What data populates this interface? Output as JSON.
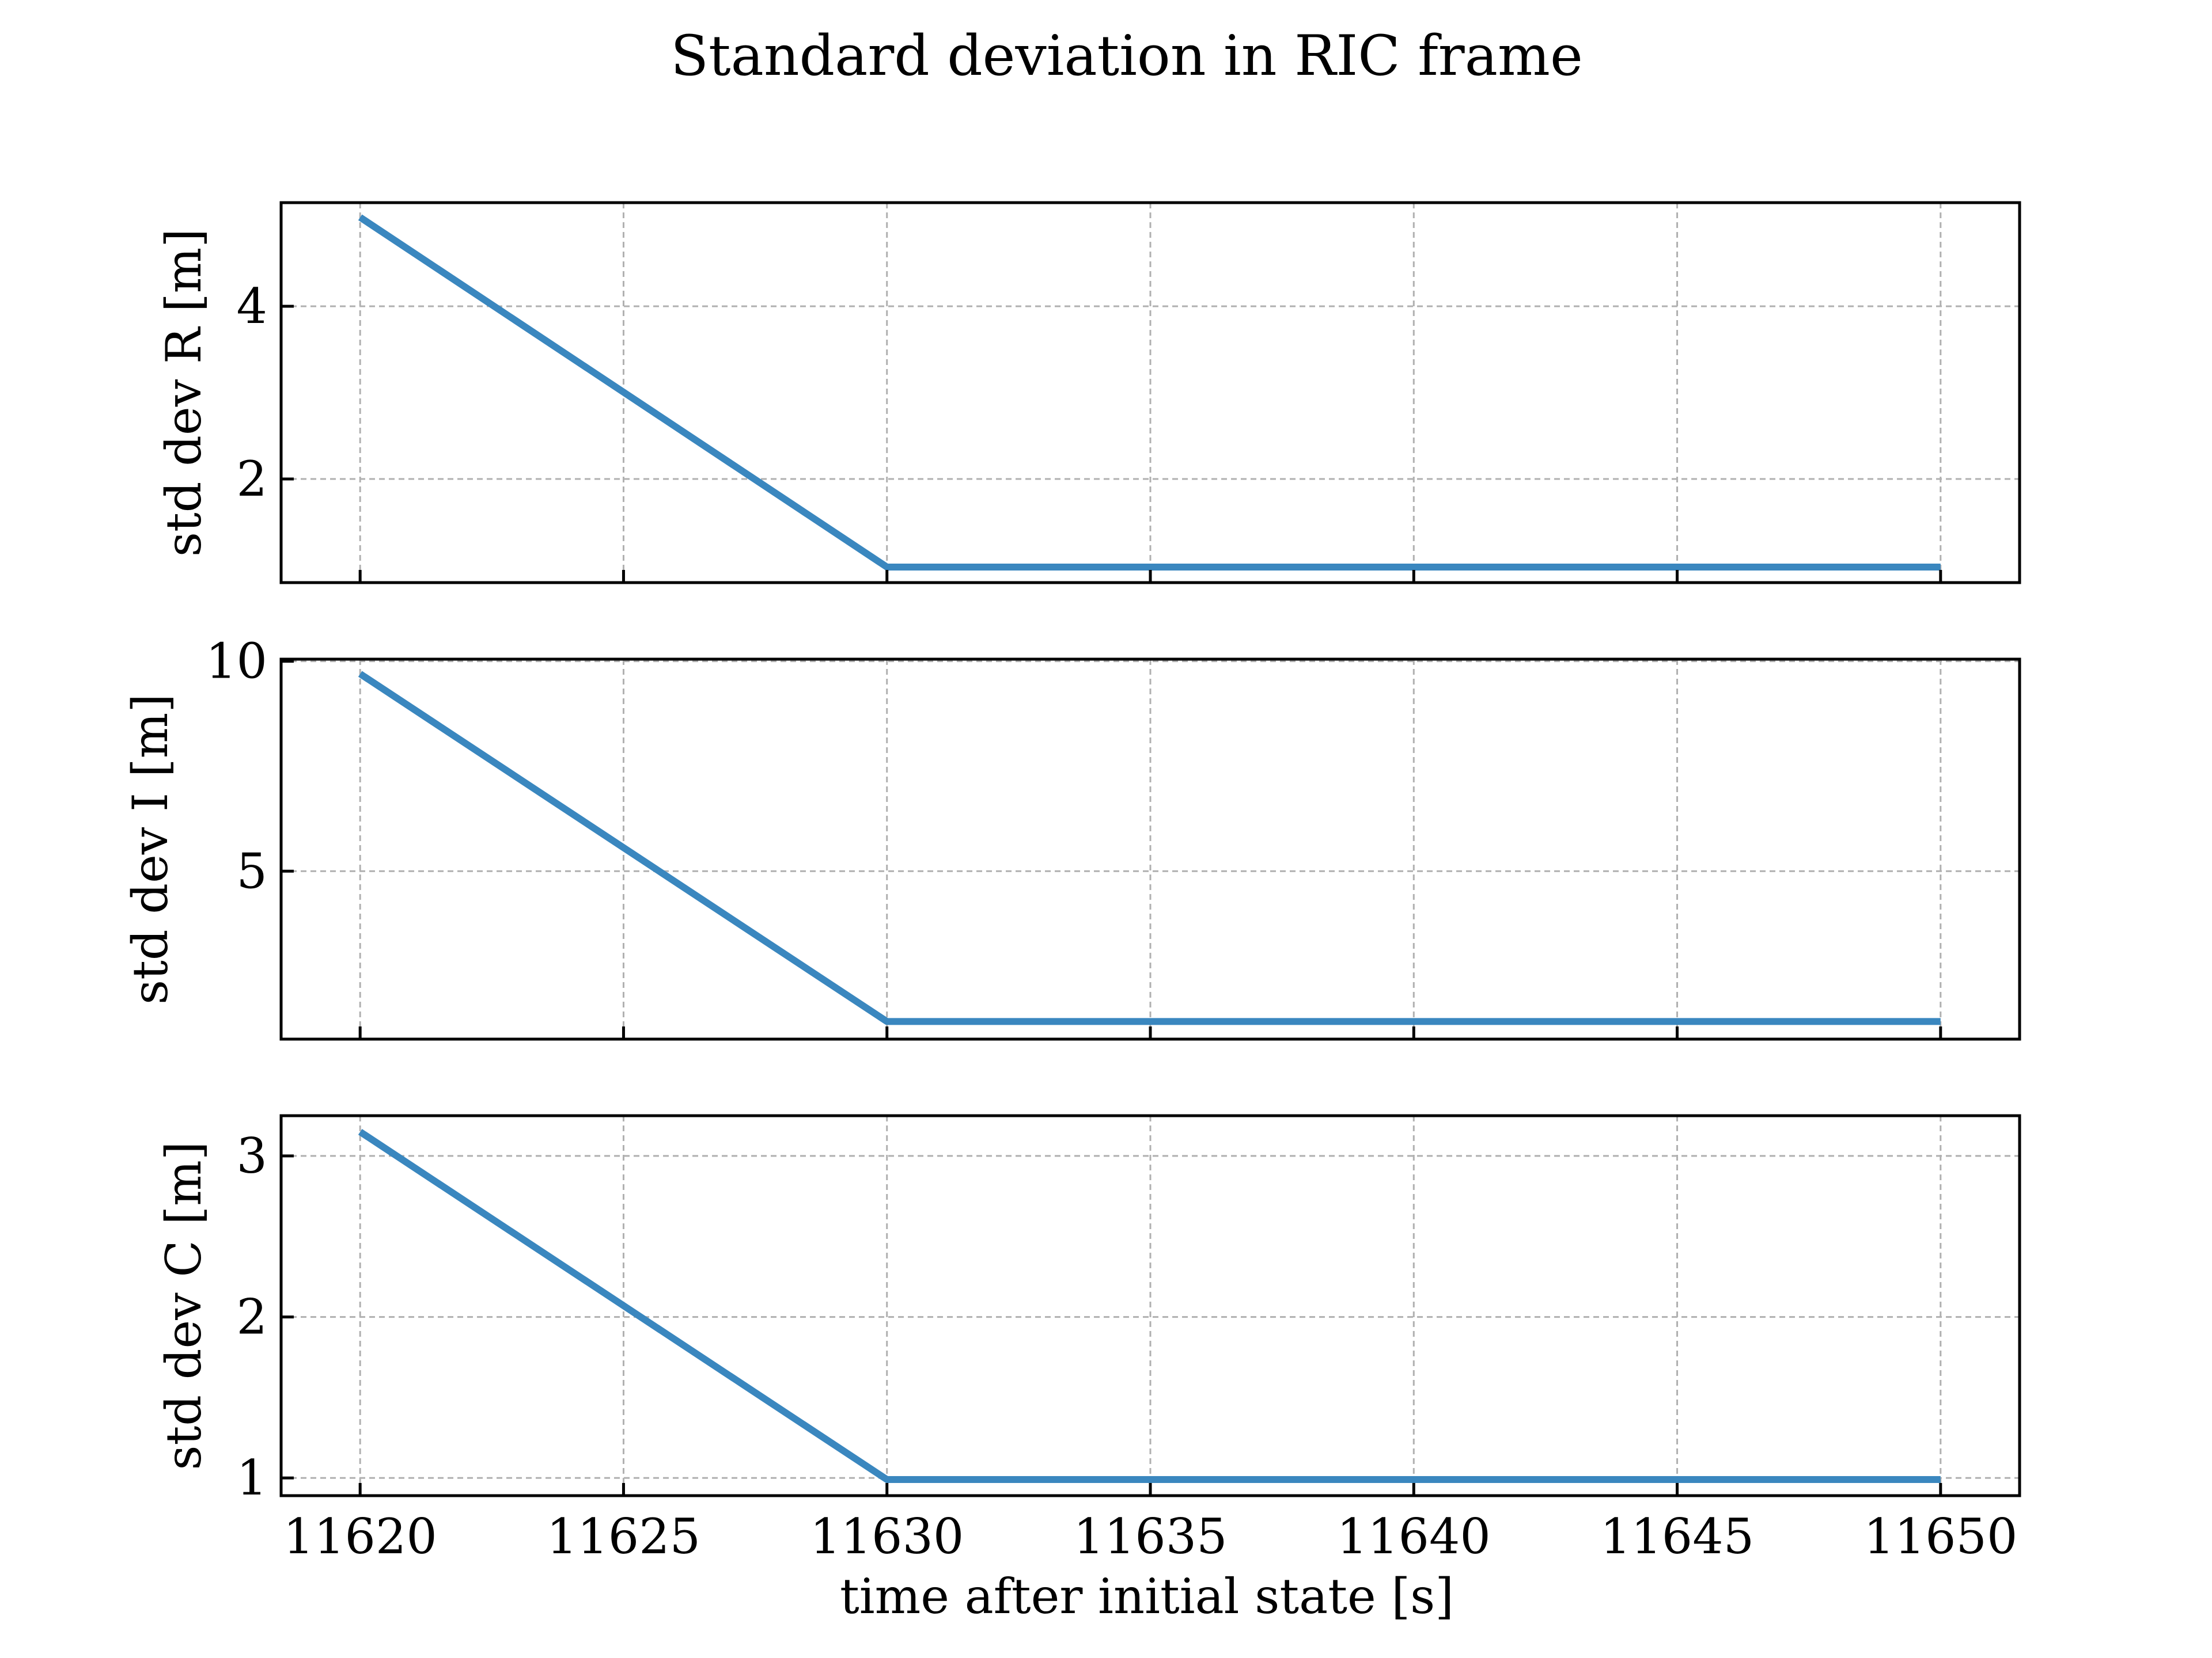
{
  "figure": {
    "title": "Standard deviation in RIC frame",
    "xlabel": "time after initial state [s]"
  },
  "colors": {
    "series": "#3a87bf",
    "grid": "#b0b0b0"
  },
  "chart_data": [
    {
      "type": "line",
      "ylabel": "std dev R [m]",
      "x": [
        11620,
        11630,
        11650
      ],
      "y": [
        5.03,
        0.98,
        0.98
      ],
      "xlim": [
        11618.5,
        11651.5
      ],
      "ylim": [
        0.8,
        5.2
      ],
      "xticks": [
        11620,
        11625,
        11630,
        11635,
        11640,
        11645,
        11650
      ],
      "yticks": [
        2,
        4
      ],
      "show_xtick_labels": false,
      "grid": true
    },
    {
      "type": "line",
      "ylabel": "std dev I [m]",
      "x": [
        11620,
        11630,
        11650
      ],
      "y": [
        9.7,
        1.42,
        1.42
      ],
      "xlim": [
        11618.5,
        11651.5
      ],
      "ylim": [
        1.0,
        10.05
      ],
      "xticks": [
        11620,
        11625,
        11630,
        11635,
        11640,
        11645,
        11650
      ],
      "yticks": [
        5,
        10
      ],
      "show_xtick_labels": false,
      "grid": true
    },
    {
      "type": "line",
      "ylabel": "std dev C [m]",
      "x": [
        11620,
        11630,
        11650
      ],
      "y": [
        3.15,
        0.99,
        0.99
      ],
      "xlim": [
        11618.5,
        11651.5
      ],
      "ylim": [
        0.89,
        3.25
      ],
      "xticks": [
        11620,
        11625,
        11630,
        11635,
        11640,
        11645,
        11650
      ],
      "yticks": [
        1,
        2,
        3
      ],
      "show_xtick_labels": true,
      "grid": true
    }
  ]
}
